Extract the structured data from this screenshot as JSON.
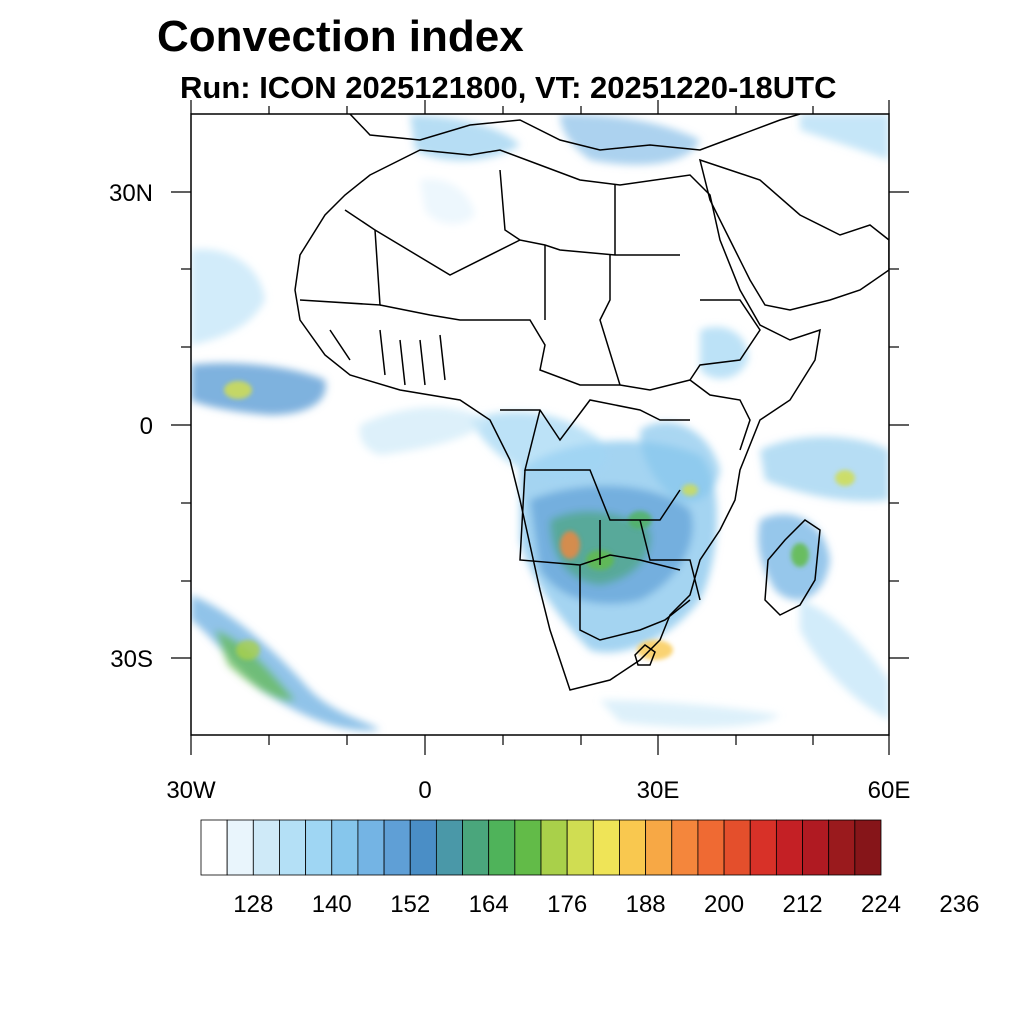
{
  "title": "Convection index",
  "subtitle": "Run: ICON 2025121800,  VT: 20251220-18UTC",
  "axes": {
    "lat_labels": [
      "30N",
      "0",
      "30S"
    ],
    "lon_labels": [
      "30W",
      "0",
      "30E",
      "60E"
    ]
  },
  "colorbar": {
    "colors": [
      "#ffffff",
      "#e9f5fc",
      "#cfeaf8",
      "#b4e0f6",
      "#9fd6f3",
      "#86c6ec",
      "#74b4e4",
      "#5f9fd6",
      "#4a8ec6",
      "#4a98a8",
      "#4aa67c",
      "#4fb35a",
      "#62bb48",
      "#a9d04a",
      "#d0dd52",
      "#efe457",
      "#f9c84f",
      "#f7a845",
      "#f4863c",
      "#ef6a33",
      "#e44f2c",
      "#d83128",
      "#c42025",
      "#b01a22",
      "#9a1a1d",
      "#861519"
    ],
    "tick_labels": [
      "128",
      "140",
      "152",
      "164",
      "176",
      "188",
      "200",
      "212",
      "224",
      "236"
    ]
  }
}
